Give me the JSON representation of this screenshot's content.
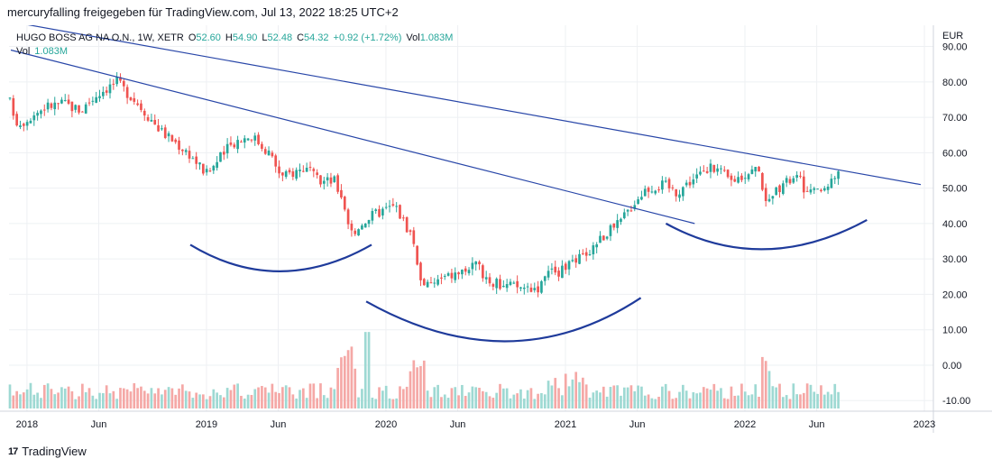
{
  "header": {
    "attribution": "mercuryfalling freigegeben für TradingView.com, Jul 13, 2022 18:25 UTC+2"
  },
  "legend": {
    "symbol": "HUGO BOSS AG NA O.N., 1W, XETR",
    "open_label": "O",
    "open": "52.60",
    "high_label": "H",
    "high": "54.90",
    "low_label": "L",
    "low": "52.48",
    "close_label": "C",
    "close": "54.32",
    "change": "+0.92 (+1.72%)",
    "vol_inline_label": "Vol",
    "vol_inline": "1.083M",
    "vol_label": "Vol",
    "vol": "1.083M"
  },
  "footer": {
    "brand": "TradingView",
    "logo": "17"
  },
  "colors": {
    "up": "#26a69a",
    "down": "#ef5350",
    "vol_up": "#9ed9d3",
    "vol_down": "#f5a8a6",
    "trend": "#2846a8",
    "arc": "#1f3b9b",
    "grid": "#eef0f3"
  },
  "chart_data": {
    "type": "candlestick",
    "currency": "EUR",
    "interval": "1W",
    "exchange": "XETR",
    "x_labels": [
      "2018",
      "Jun",
      "2019",
      "Jun",
      "2020",
      "Jun",
      "2021",
      "Jun",
      "2022",
      "Jun",
      "2023"
    ],
    "y_ticks": [
      "90.00",
      "80.00",
      "70.00",
      "60.00",
      "50.00",
      "40.00",
      "30.00",
      "20.00",
      "10.00",
      "0.00",
      "-10.00"
    ],
    "y_range": [
      -13,
      96
    ],
    "x_range": [
      2017.9,
      2023.05
    ],
    "anchors": [
      [
        2017.9,
        75
      ],
      [
        2017.95,
        68
      ],
      [
        2018.1,
        73
      ],
      [
        2018.2,
        74
      ],
      [
        2018.3,
        72
      ],
      [
        2018.4,
        77
      ],
      [
        2018.5,
        80
      ],
      [
        2018.6,
        75
      ],
      [
        2018.75,
        66
      ],
      [
        2018.9,
        60
      ],
      [
        2019.0,
        54
      ],
      [
        2019.15,
        63
      ],
      [
        2019.25,
        65
      ],
      [
        2019.35,
        60
      ],
      [
        2019.42,
        53
      ],
      [
        2019.55,
        56
      ],
      [
        2019.62,
        52
      ],
      [
        2019.72,
        52
      ],
      [
        2019.8,
        37
      ],
      [
        2019.88,
        41
      ],
      [
        2019.95,
        43
      ],
      [
        2020.05,
        45
      ],
      [
        2020.15,
        36
      ],
      [
        2020.2,
        22
      ],
      [
        2020.3,
        24
      ],
      [
        2020.4,
        26
      ],
      [
        2020.5,
        28
      ],
      [
        2020.6,
        23
      ],
      [
        2020.75,
        22
      ],
      [
        2020.85,
        22
      ],
      [
        2020.92,
        26
      ],
      [
        2021.0,
        27
      ],
      [
        2021.1,
        31
      ],
      [
        2021.2,
        36
      ],
      [
        2021.3,
        40
      ],
      [
        2021.38,
        46
      ],
      [
        2021.45,
        50
      ],
      [
        2021.55,
        51
      ],
      [
        2021.62,
        49
      ],
      [
        2021.72,
        53
      ],
      [
        2021.83,
        56
      ],
      [
        2021.92,
        52
      ],
      [
        2022.0,
        54
      ],
      [
        2022.08,
        56
      ],
      [
        2022.12,
        44
      ],
      [
        2022.2,
        51
      ],
      [
        2022.3,
        53
      ],
      [
        2022.35,
        48
      ],
      [
        2022.42,
        49
      ],
      [
        2022.47,
        52
      ],
      [
        2022.53,
        54.32
      ]
    ],
    "volume_range": [
      0,
      35
    ],
    "trendlines": [
      {
        "name": "upper-trendline",
        "from": [
          2017.91,
          97
        ],
        "to": [
          2022.98,
          51
        ]
      },
      {
        "name": "lower-trendline",
        "from": [
          2017.91,
          89
        ],
        "to": [
          2021.72,
          40
        ]
      }
    ],
    "arcs": [
      {
        "name": "arc-left-shoulder",
        "from": [
          2018.91,
          34
        ],
        "control": [
          2019.4,
          19
        ],
        "to": [
          2019.92,
          34
        ]
      },
      {
        "name": "arc-head",
        "from": [
          2019.89,
          18
        ],
        "control": [
          2020.7,
          -5
        ],
        "to": [
          2021.42,
          19
        ]
      },
      {
        "name": "arc-right-shoulder",
        "from": [
          2021.56,
          40
        ],
        "control": [
          2022.1,
          25
        ],
        "to": [
          2022.68,
          41
        ]
      }
    ]
  }
}
